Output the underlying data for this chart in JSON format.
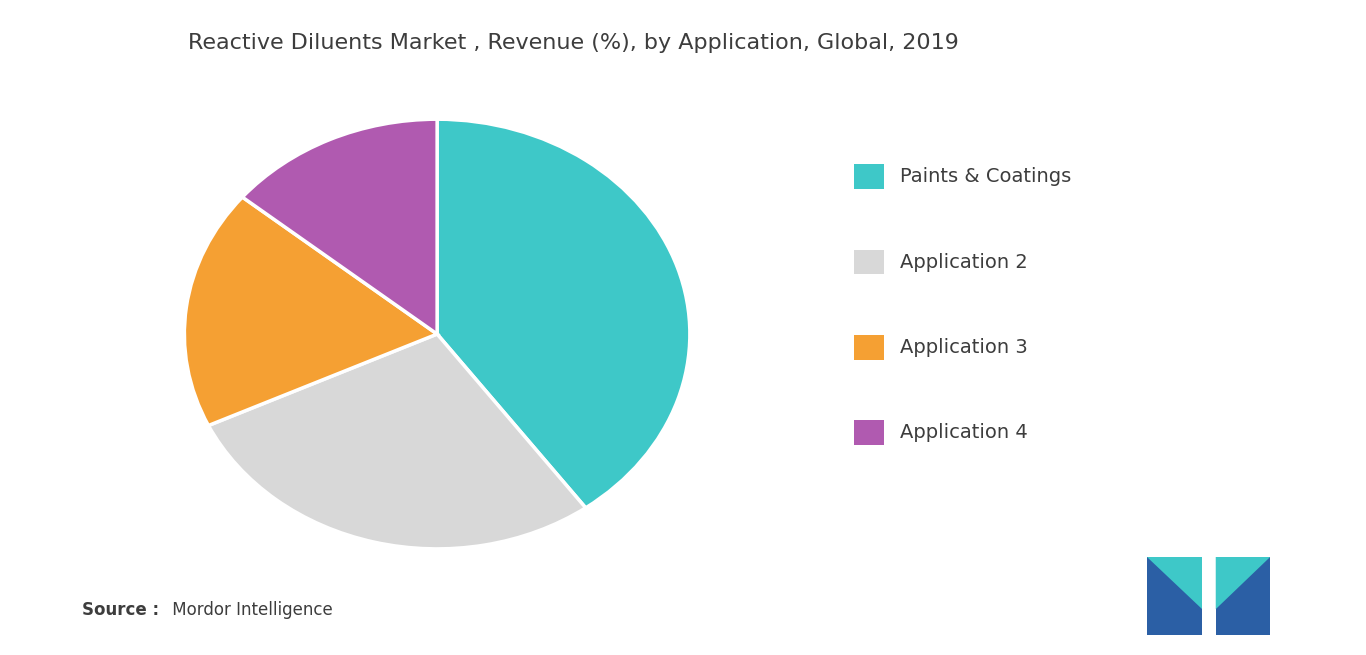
{
  "title": "Reactive Diluents Market , Revenue (%), by Application, Global, 2019",
  "labels": [
    "Paints & Coatings",
    "Application 2",
    "Application 3",
    "Application 4"
  ],
  "values": [
    40,
    28,
    18,
    14
  ],
  "colors": [
    "#3ec8c8",
    "#d8d8d8",
    "#f5a033",
    "#b05ab0"
  ],
  "legend_labels": [
    "Paints & Coatings",
    "Application 2",
    "Application 3",
    "Application 4"
  ],
  "background_color": "#ffffff",
  "startangle": 90,
  "title_fontsize": 16,
  "legend_fontsize": 14,
  "source_bold": "Source :",
  "source_normal": " Mordor Intelligence"
}
